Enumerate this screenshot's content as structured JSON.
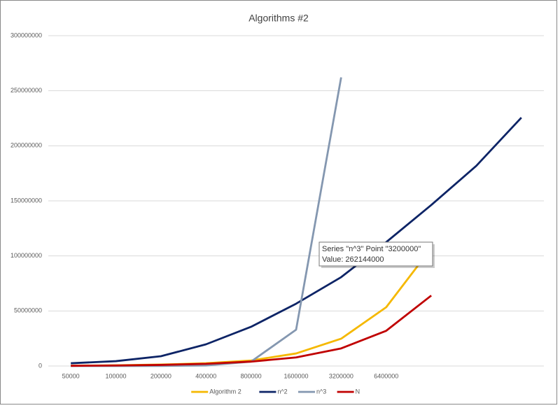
{
  "chart_data": {
    "type": "line",
    "title": "Algorithms #2",
    "categories": [
      "50000",
      "100000",
      "200000",
      "400000",
      "800000",
      "1600000",
      "3200000",
      "6400000",
      null,
      null,
      null
    ],
    "series": [
      {
        "name": "Algorithm 2",
        "color": "#f5b800",
        "values": [
          300000,
          600000,
          1300000,
          2500000,
          5000000,
          11400000,
          24800000,
          53400000,
          107000000,
          null,
          null
        ]
      },
      {
        "name": "n^2",
        "color": "#0d2466",
        "values": [
          2500000,
          4400000,
          8900000,
          19700000,
          35600000,
          56600000,
          80700000,
          112500000,
          146200000,
          181800000,
          225600000
        ]
      },
      {
        "name": "n^3",
        "color": "#8497b0",
        "values": [
          0,
          0,
          100000,
          500000,
          4000000,
          33000000,
          262144000,
          null,
          null,
          null,
          null
        ]
      },
      {
        "name": "N",
        "color": "#c00000",
        "values": [
          200000,
          500000,
          1000000,
          2000000,
          4000000,
          7800000,
          16000000,
          32000000,
          64000000,
          null,
          null
        ]
      }
    ],
    "ylim": [
      0,
      300000000
    ],
    "yticks": [
      0,
      50000000,
      100000000,
      150000000,
      200000000,
      250000000,
      300000000
    ],
    "grid": true,
    "legend": "bottom",
    "tooltip": {
      "line1": "Series \"n^3\" Point \"3200000\"",
      "line2": "Value: 262144000"
    }
  }
}
